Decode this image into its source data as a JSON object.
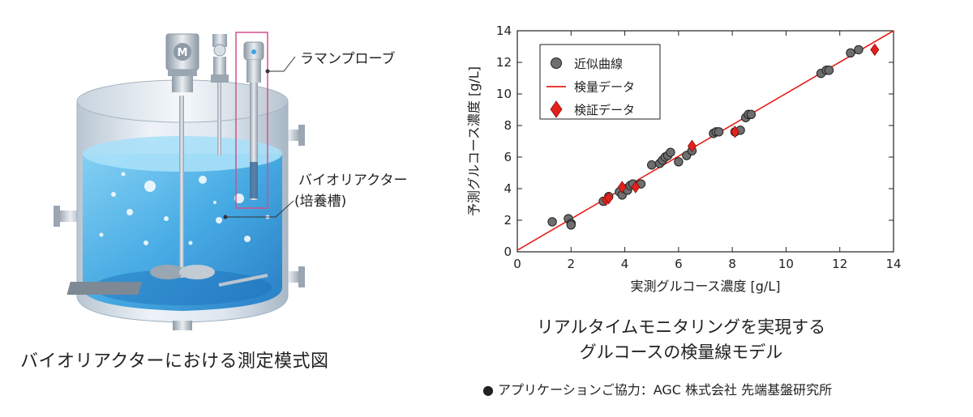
{
  "illustration": {
    "motor_letter": "M",
    "probe_label": "ラマンプローブ",
    "reactor_label_line1": "バイオリアクター",
    "reactor_label_line2": "(培養槽)",
    "caption": "バイオリアクターにおける測定模式図"
  },
  "caption": {
    "line1": "リアルタイムモニタリングを実現する",
    "line2": "グルコースの検量線モデル"
  },
  "credit": "● アプリケーションご協力：AGC 株式会社 先端基盤研究所",
  "colors": {
    "fit_line": "#e3201b",
    "approx_marker": "#6e6e6e",
    "validation_marker": "#e3201b",
    "probe_highlight": "#d4508a",
    "liquid": "#4fb3e8"
  },
  "chart_data": {
    "type": "scatter",
    "xlabel": "実測グルコース濃度 [g/L]",
    "ylabel": "予測グルコース濃度 [g/L]",
    "xlim": [
      0,
      14
    ],
    "ylim": [
      0,
      14
    ],
    "xticks": [
      "0",
      "2",
      "4",
      "6",
      "8",
      "10",
      "12",
      "14"
    ],
    "yticks": [
      "0",
      "2",
      "4",
      "6",
      "8",
      "10",
      "12",
      "14"
    ],
    "grid": false,
    "legend_position": "top-left",
    "series": [
      {
        "name": "近似曲線",
        "marker": "circle",
        "x": [
          1.3,
          1.9,
          2.0,
          2.0,
          3.2,
          3.4,
          3.8,
          3.9,
          4.0,
          4.1,
          4.2,
          4.3,
          4.6,
          5.0,
          5.3,
          5.4,
          5.5,
          5.6,
          5.7,
          6.0,
          6.3,
          6.5,
          7.3,
          7.4,
          7.5,
          8.1,
          8.3,
          8.5,
          8.6,
          8.7,
          11.3,
          11.5,
          11.6,
          12.4,
          12.7
        ],
        "y": [
          1.9,
          2.1,
          1.8,
          1.7,
          3.2,
          3.5,
          3.8,
          3.6,
          4.0,
          3.9,
          4.2,
          4.3,
          4.3,
          5.5,
          5.6,
          5.8,
          6.0,
          6.1,
          6.3,
          5.7,
          6.1,
          6.4,
          7.5,
          7.6,
          7.6,
          7.6,
          7.7,
          8.5,
          8.7,
          8.7,
          11.3,
          11.5,
          11.5,
          12.6,
          12.8
        ]
      },
      {
        "name": "検量データ",
        "marker": "line",
        "x": [
          0,
          14
        ],
        "y": [
          0.1,
          14
        ]
      },
      {
        "name": "検証データ",
        "marker": "diamond",
        "x": [
          3.3,
          3.4,
          3.9,
          4.4,
          6.5,
          8.1,
          13.3
        ],
        "y": [
          3.3,
          3.4,
          4.1,
          4.1,
          6.7,
          7.6,
          12.8
        ]
      }
    ]
  }
}
